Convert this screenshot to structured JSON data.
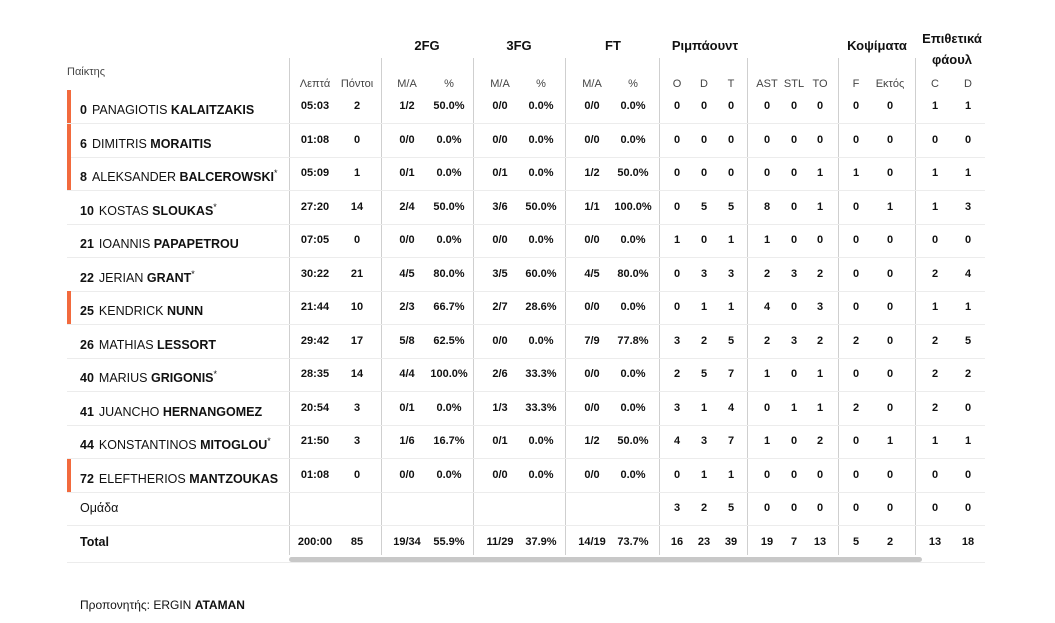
{
  "headers": {
    "player": "Παίκτης",
    "groups": {
      "g2fg": "2FG",
      "g3fg": "3FG",
      "gft": "FT",
      "greb": "Ριμπάουντ",
      "gblk": "Κοψίματα",
      "gfoul_l1": "Επιθετικά",
      "gfoul_l2": "φάουλ"
    },
    "sub": {
      "min": "Λεπτά",
      "pts": "Πόντοι",
      "fg2_ma": "M/A",
      "fg2_pct": "%",
      "fg3_ma": "M/A",
      "fg3_pct": "%",
      "ft_ma": "M/A",
      "ft_pct": "%",
      "o": "O",
      "d": "D",
      "t": "T",
      "ast": "AST",
      "stl": "STL",
      "to": "TO",
      "f": "F",
      "ext": "Εκτός",
      "c": "C",
      "dd": "D"
    }
  },
  "accent_color": "#f26a3d",
  "rows": [
    {
      "num": "0",
      "first": "PANAGIOTIS",
      "last": "KALAITZAKIS",
      "star": "",
      "bar": true,
      "min": "05:03",
      "pts": "2",
      "fg2": "1/2",
      "fg2p": "50.0%",
      "fg3": "0/0",
      "fg3p": "0.0%",
      "ft": "0/0",
      "ftp": "0.0%",
      "o": "0",
      "d": "0",
      "t": "0",
      "ast": "0",
      "stl": "0",
      "to": "0",
      "f": "0",
      "ext": "0",
      "c": "1",
      "dd": "1"
    },
    {
      "num": "6",
      "first": "DIMITRIS",
      "last": "MORAITIS",
      "star": "",
      "bar": true,
      "min": "01:08",
      "pts": "0",
      "fg2": "0/0",
      "fg2p": "0.0%",
      "fg3": "0/0",
      "fg3p": "0.0%",
      "ft": "0/0",
      "ftp": "0.0%",
      "o": "0",
      "d": "0",
      "t": "0",
      "ast": "0",
      "stl": "0",
      "to": "0",
      "f": "0",
      "ext": "0",
      "c": "0",
      "dd": "0"
    },
    {
      "num": "8",
      "first": "ALEKSANDER",
      "last": "BALCEROWSKI",
      "star": "*",
      "bar": true,
      "min": "05:09",
      "pts": "1",
      "fg2": "0/1",
      "fg2p": "0.0%",
      "fg3": "0/1",
      "fg3p": "0.0%",
      "ft": "1/2",
      "ftp": "50.0%",
      "o": "0",
      "d": "0",
      "t": "0",
      "ast": "0",
      "stl": "0",
      "to": "1",
      "f": "1",
      "ext": "0",
      "c": "1",
      "dd": "1"
    },
    {
      "num": "10",
      "first": "KOSTAS",
      "last": "SLOUKAS",
      "star": "*",
      "bar": false,
      "min": "27:20",
      "pts": "14",
      "fg2": "2/4",
      "fg2p": "50.0%",
      "fg3": "3/6",
      "fg3p": "50.0%",
      "ft": "1/1",
      "ftp": "100.0%",
      "o": "0",
      "d": "5",
      "t": "5",
      "ast": "8",
      "stl": "0",
      "to": "1",
      "f": "0",
      "ext": "1",
      "c": "1",
      "dd": "3"
    },
    {
      "num": "21",
      "first": "IOANNIS",
      "last": "PAPAPETROU",
      "star": "",
      "bar": false,
      "min": "07:05",
      "pts": "0",
      "fg2": "0/0",
      "fg2p": "0.0%",
      "fg3": "0/0",
      "fg3p": "0.0%",
      "ft": "0/0",
      "ftp": "0.0%",
      "o": "1",
      "d": "0",
      "t": "1",
      "ast": "1",
      "stl": "0",
      "to": "0",
      "f": "0",
      "ext": "0",
      "c": "0",
      "dd": "0"
    },
    {
      "num": "22",
      "first": "JERIAN",
      "last": "GRANT",
      "star": "*",
      "bar": false,
      "min": "30:22",
      "pts": "21",
      "fg2": "4/5",
      "fg2p": "80.0%",
      "fg3": "3/5",
      "fg3p": "60.0%",
      "ft": "4/5",
      "ftp": "80.0%",
      "o": "0",
      "d": "3",
      "t": "3",
      "ast": "2",
      "stl": "3",
      "to": "2",
      "f": "0",
      "ext": "0",
      "c": "2",
      "dd": "4"
    },
    {
      "num": "25",
      "first": "KENDRICK",
      "last": "NUNN",
      "star": "",
      "bar": true,
      "min": "21:44",
      "pts": "10",
      "fg2": "2/3",
      "fg2p": "66.7%",
      "fg3": "2/7",
      "fg3p": "28.6%",
      "ft": "0/0",
      "ftp": "0.0%",
      "o": "0",
      "d": "1",
      "t": "1",
      "ast": "4",
      "stl": "0",
      "to": "3",
      "f": "0",
      "ext": "0",
      "c": "1",
      "dd": "1"
    },
    {
      "num": "26",
      "first": "MATHIAS",
      "last": "LESSORT",
      "star": "",
      "bar": false,
      "min": "29:42",
      "pts": "17",
      "fg2": "5/8",
      "fg2p": "62.5%",
      "fg3": "0/0",
      "fg3p": "0.0%",
      "ft": "7/9",
      "ftp": "77.8%",
      "o": "3",
      "d": "2",
      "t": "5",
      "ast": "2",
      "stl": "3",
      "to": "2",
      "f": "2",
      "ext": "0",
      "c": "2",
      "dd": "5"
    },
    {
      "num": "40",
      "first": "MARIUS",
      "last": "GRIGONIS",
      "star": "*",
      "bar": false,
      "min": "28:35",
      "pts": "14",
      "fg2": "4/4",
      "fg2p": "100.0%",
      "fg3": "2/6",
      "fg3p": "33.3%",
      "ft": "0/0",
      "ftp": "0.0%",
      "o": "2",
      "d": "5",
      "t": "7",
      "ast": "1",
      "stl": "0",
      "to": "1",
      "f": "0",
      "ext": "0",
      "c": "2",
      "dd": "2"
    },
    {
      "num": "41",
      "first": "JUANCHO",
      "last": "HERNANGOMEZ",
      "star": "",
      "bar": false,
      "min": "20:54",
      "pts": "3",
      "fg2": "0/1",
      "fg2p": "0.0%",
      "fg3": "1/3",
      "fg3p": "33.3%",
      "ft": "0/0",
      "ftp": "0.0%",
      "o": "3",
      "d": "1",
      "t": "4",
      "ast": "0",
      "stl": "1",
      "to": "1",
      "f": "2",
      "ext": "0",
      "c": "2",
      "dd": "0"
    },
    {
      "num": "44",
      "first": "KONSTANTINOS",
      "last": "MITOGLOU",
      "star": "*",
      "bar": false,
      "min": "21:50",
      "pts": "3",
      "fg2": "1/6",
      "fg2p": "16.7%",
      "fg3": "0/1",
      "fg3p": "0.0%",
      "ft": "1/2",
      "ftp": "50.0%",
      "o": "4",
      "d": "3",
      "t": "7",
      "ast": "1",
      "stl": "0",
      "to": "2",
      "f": "0",
      "ext": "1",
      "c": "1",
      "dd": "1"
    },
    {
      "num": "72",
      "first": "ELEFTHERIOS",
      "last": "MANTZOUKAS",
      "star": "",
      "bar": true,
      "min": "01:08",
      "pts": "0",
      "fg2": "0/0",
      "fg2p": "0.0%",
      "fg3": "0/0",
      "fg3p": "0.0%",
      "ft": "0/0",
      "ftp": "0.0%",
      "o": "0",
      "d": "1",
      "t": "1",
      "ast": "0",
      "stl": "0",
      "to": "0",
      "f": "0",
      "ext": "0",
      "c": "0",
      "dd": "0"
    }
  ],
  "team_row": {
    "label": "Ομάδα",
    "o": "3",
    "d": "2",
    "t": "5",
    "ast": "0",
    "stl": "0",
    "to": "0",
    "f": "0",
    "ext": "0",
    "c": "0",
    "dd": "0"
  },
  "total_row": {
    "label": "Total",
    "min": "200:00",
    "pts": "85",
    "fg2": "19/34",
    "fg2p": "55.9%",
    "fg3": "11/29",
    "fg3p": "37.9%",
    "ft": "14/19",
    "ftp": "73.7%",
    "o": "16",
    "d": "23",
    "t": "39",
    "ast": "19",
    "stl": "7",
    "to": "13",
    "f": "5",
    "ext": "2",
    "c": "13",
    "dd": "18"
  },
  "coach": {
    "label": "Προπονητής:",
    "first": "ERGIN",
    "last": "ATAMAN"
  }
}
